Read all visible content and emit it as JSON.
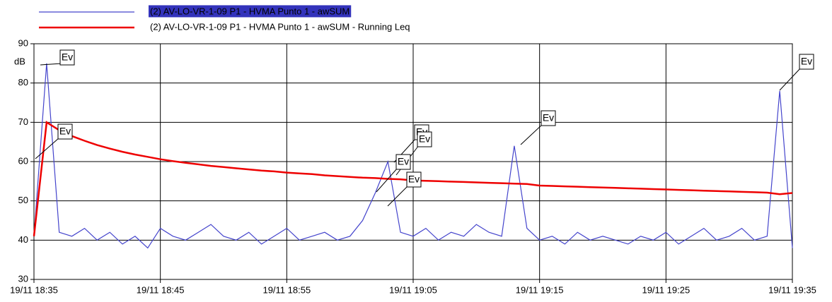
{
  "chart_data": {
    "type": "line",
    "y_label": "dB",
    "x": [
      "19/11 18:35",
      "19/11 18:36",
      "19/11 18:37",
      "19/11 18:38",
      "19/11 18:39",
      "19/11 18:40",
      "19/11 18:41",
      "19/11 18:42",
      "19/11 18:43",
      "19/11 18:44",
      "19/11 18:45",
      "19/11 18:46",
      "19/11 18:47",
      "19/11 18:48",
      "19/11 18:49",
      "19/11 18:50",
      "19/11 18:51",
      "19/11 18:52",
      "19/11 18:53",
      "19/11 18:54",
      "19/11 18:55",
      "19/11 18:56",
      "19/11 18:57",
      "19/11 18:58",
      "19/11 18:59",
      "19/11 19:00",
      "19/11 19:01",
      "19/11 19:02",
      "19/11 19:03",
      "19/11 19:04",
      "19/11 19:05",
      "19/11 19:06",
      "19/11 19:07",
      "19/11 19:08",
      "19/11 19:09",
      "19/11 19:10",
      "19/11 19:11",
      "19/11 19:12",
      "19/11 19:13",
      "19/11 19:14",
      "19/11 19:15",
      "19/11 19:16",
      "19/11 19:17",
      "19/11 19:18",
      "19/11 19:19",
      "19/11 19:20",
      "19/11 19:21",
      "19/11 19:22",
      "19/11 19:23",
      "19/11 19:24",
      "19/11 19:25",
      "19/11 19:26",
      "19/11 19:27",
      "19/11 19:28",
      "19/11 19:29",
      "19/11 19:30",
      "19/11 19:31",
      "19/11 19:32",
      "19/11 19:33",
      "19/11 19:34",
      "19/11 19:35"
    ],
    "series": [
      {
        "name": "(2) AV-LO-VR-1-09 P1 - HVMA Punto 1 - awSUM",
        "color": "#4444cc",
        "values": [
          41,
          85,
          42,
          41,
          43,
          40,
          42,
          39,
          41,
          38,
          43,
          41,
          40,
          42,
          44,
          41,
          40,
          42,
          39,
          41,
          43,
          40,
          41,
          42,
          40,
          41,
          45,
          52,
          60,
          42,
          41,
          43,
          40,
          42,
          41,
          44,
          42,
          41,
          64,
          43,
          40,
          41,
          39,
          42,
          40,
          41,
          40,
          39,
          41,
          40,
          42,
          39,
          41,
          43,
          40,
          41,
          43,
          40,
          41,
          78,
          38
        ]
      },
      {
        "name": "(2) AV-LO-VR-1-09 P1 - HVMA Punto 1 - awSUM - Running Leq",
        "color": "#ee0000",
        "values": [
          41,
          70,
          68,
          66.5,
          65.3,
          64.2,
          63.3,
          62.5,
          61.8,
          61.2,
          60.6,
          60.1,
          59.7,
          59.3,
          58.9,
          58.6,
          58.3,
          58,
          57.7,
          57.5,
          57.2,
          57,
          56.8,
          56.5,
          56.3,
          56.1,
          55.9,
          55.8,
          55.6,
          55.5,
          55.2,
          55.1,
          55,
          54.9,
          54.8,
          54.7,
          54.6,
          54.5,
          54.4,
          54.3,
          53.9,
          53.8,
          53.7,
          53.6,
          53.5,
          53.4,
          53.3,
          53.2,
          53.1,
          53,
          52.9,
          52.8,
          52.7,
          52.6,
          52.5,
          52.4,
          52.3,
          52.2,
          52.1,
          51.7,
          52
        ]
      }
    ],
    "xlim": [
      "19/11 18:35",
      "19/11 19:35"
    ],
    "xticks": [
      "19/11 18:35",
      "19/11 18:45",
      "19/11 18:55",
      "19/11 19:05",
      "19/11 19:15",
      "19/11 19:25",
      "19/11 19:35"
    ],
    "ylim": [
      30,
      90
    ],
    "yticks": [
      30,
      40,
      50,
      60,
      70,
      80,
      90
    ],
    "grid": true,
    "legend": "top",
    "annotations": [
      "Ev",
      "Ev",
      "Ev",
      "Ev",
      "Ev",
      "Ev",
      "Ev",
      "Ev"
    ]
  }
}
